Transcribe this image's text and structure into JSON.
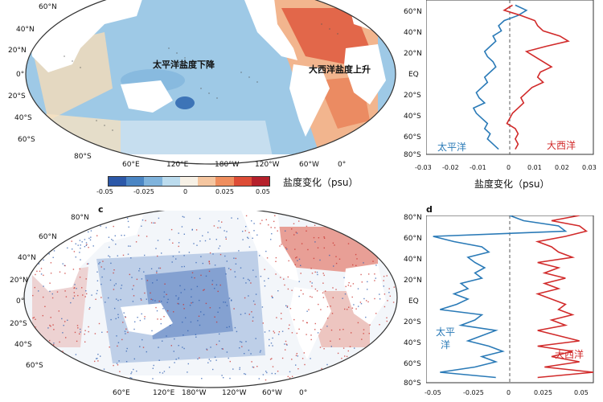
{
  "panel_c_label": "c",
  "panel_d_label": "d",
  "map_lat_labels": [
    "60°N",
    "40°N",
    "20°N",
    "0°",
    "20°S",
    "40°S",
    "60°S",
    "80°S"
  ],
  "map_lon_labels": [
    "60°E",
    "120°E",
    "180°W",
    "120°W",
    "60°W",
    "0°"
  ],
  "map_top_label_pacific": "太平洋盐度下降",
  "map_top_label_atlantic": "大西洋盐度上升",
  "colorbar": {
    "label": "盐度变化（psu）",
    "ticks": [
      "-0.05",
      "-0.025",
      "0",
      "0.025",
      "0.05"
    ],
    "colors": [
      "#2c58a8",
      "#4b86c4",
      "#7fb3dc",
      "#bcdcee",
      "#f7f1e6",
      "#f5c6a0",
      "#ef8e5e",
      "#dd4c36",
      "#b5202b"
    ]
  },
  "profile_b": {
    "xlabel": "盐度变化（psu）",
    "xticks": [
      "-0.03",
      "-0.02",
      "-0.01",
      "0",
      "0.01",
      "0.02",
      "0.03"
    ],
    "ylabels": [
      "60°N",
      "40°N",
      "20°N",
      "EQ",
      "20°S",
      "40°S",
      "60°S",
      "80°S"
    ],
    "pacific_label": "太平洋",
    "atlantic_label": "大西洋"
  },
  "profile_d": {
    "xticks": [
      "-0.05",
      "-0.025",
      "0",
      "0.025",
      "0.05"
    ],
    "ylabels": [
      "80°N",
      "60°N",
      "40°N",
      "20°N",
      "EQ",
      "20°S",
      "40°S",
      "60°S",
      "80°S"
    ],
    "pacific_label_1": "太平",
    "pacific_label_2": "洋",
    "atlantic_label": "大西洋"
  },
  "chart_data": [
    {
      "type": "line",
      "xlabel": "盐度变化（psu）",
      "xlim": [
        -0.03,
        0.03
      ],
      "ylim": [
        -80,
        70
      ],
      "series": [
        {
          "name": "太平洋",
          "color": "#2a7ab7",
          "lat": [
            65,
            60,
            55,
            50,
            45,
            40,
            35,
            30,
            25,
            20,
            15,
            10,
            5,
            0,
            -5,
            -10,
            -15,
            -20,
            -25,
            -30,
            -35,
            -40,
            -45,
            -50,
            -55,
            -60,
            -65,
            -70,
            -75
          ],
          "values": [
            0.002,
            0.006,
            0.003,
            -0.002,
            -0.004,
            -0.003,
            -0.006,
            -0.005,
            -0.007,
            -0.009,
            -0.008,
            -0.006,
            -0.005,
            -0.007,
            -0.009,
            -0.008,
            -0.01,
            -0.012,
            -0.011,
            -0.009,
            -0.013,
            -0.012,
            -0.01,
            -0.008,
            -0.009,
            -0.007,
            -0.008,
            -0.006,
            -0.004
          ]
        },
        {
          "name": "大西洋",
          "color": "#d12a2a",
          "lat": [
            65,
            60,
            55,
            50,
            45,
            40,
            35,
            30,
            25,
            20,
            15,
            10,
            5,
            0,
            -5,
            -10,
            -15,
            -20,
            -25,
            -30,
            -35,
            -40,
            -45,
            -50,
            -55,
            -60,
            -65,
            -70,
            -75
          ],
          "values": [
            0.001,
            -0.002,
            0.004,
            0.009,
            0.01,
            0.012,
            0.018,
            0.021,
            0.013,
            0.006,
            0.009,
            0.012,
            0.015,
            0.011,
            0.01,
            0.012,
            0.008,
            0.006,
            0.004,
            0.005,
            0.003,
            0.001,
            0.0,
            -0.001,
            0.002,
            0.003,
            0.002,
            0.003,
            0.002
          ]
        }
      ]
    },
    {
      "type": "line",
      "xlim": [
        -0.06,
        0.06
      ],
      "ylim": [
        -80,
        80
      ],
      "series": [
        {
          "name": "太平洋",
          "color": "#2a7ab7",
          "lat": [
            80,
            75,
            70,
            65,
            60,
            55,
            50,
            45,
            40,
            35,
            30,
            25,
            20,
            15,
            10,
            5,
            0,
            -5,
            -10,
            -15,
            -20,
            -25,
            -30,
            -35,
            -40,
            -45,
            -50,
            -55,
            -60,
            -65,
            -70,
            -75
          ],
          "values": [
            0.0,
            0.01,
            0.035,
            0.04,
            -0.055,
            -0.04,
            -0.02,
            -0.015,
            -0.03,
            -0.025,
            -0.018,
            -0.025,
            -0.02,
            -0.035,
            -0.03,
            -0.04,
            -0.03,
            -0.038,
            -0.05,
            -0.02,
            -0.025,
            -0.035,
            -0.01,
            -0.02,
            -0.03,
            -0.015,
            -0.005,
            -0.02,
            -0.01,
            -0.025,
            -0.05,
            -0.01
          ]
        },
        {
          "name": "大西洋",
          "color": "#d12a2a",
          "lat": [
            80,
            75,
            70,
            65,
            60,
            55,
            50,
            45,
            40,
            35,
            30,
            25,
            20,
            15,
            10,
            5,
            0,
            -5,
            -10,
            -15,
            -20,
            -25,
            -30,
            -35,
            -40,
            -45,
            -50,
            -55,
            -60,
            -65,
            -70,
            -75
          ],
          "values": [
            0.05,
            0.03,
            0.05,
            0.055,
            0.04,
            0.02,
            0.03,
            0.035,
            0.045,
            0.02,
            0.035,
            0.025,
            0.04,
            0.025,
            0.035,
            0.02,
            0.03,
            0.04,
            0.035,
            0.045,
            0.03,
            0.04,
            0.02,
            0.035,
            0.05,
            0.02,
            0.045,
            0.03,
            0.05,
            0.025,
            0.06,
            0.02
          ]
        }
      ]
    }
  ]
}
